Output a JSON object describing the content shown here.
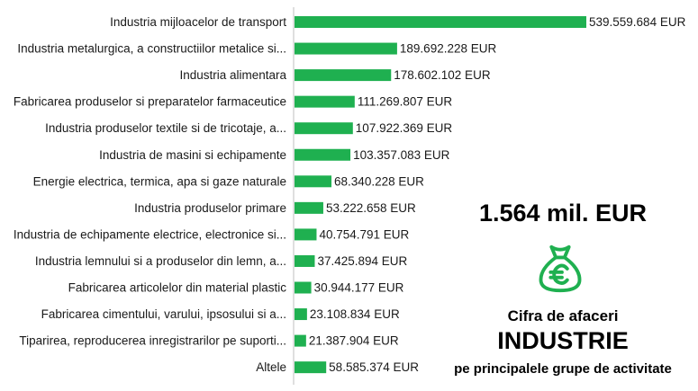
{
  "chart_data": {
    "type": "bar",
    "orientation": "horizontal",
    "title": "",
    "xlabel": "",
    "ylabel": "",
    "unit": "EUR",
    "grid": false,
    "categories": [
      "Industria mijloacelor de transport",
      "Industria metalurgica, a constructiilor metalice si...",
      "Industria alimentara",
      "Fabricarea produselor si preparatelor farmaceutice",
      "Industria produselor textile si de tricotaje, a...",
      "Industria de masini si echipamente",
      "Energie electrica, termica, apa si gaze naturale",
      "Industria produselor primare",
      "Industria de echipamente electrice, electronice si...",
      "Industria lemnului si a produselor din lemn, a...",
      "Fabricarea articolelor din material plastic",
      "Fabricarea cimentului, varului, ipsosului si a...",
      "Tiparirea, reproducerea inregistrarilor pe suporti...",
      "Altele"
    ],
    "values": [
      539559684,
      189692228,
      178602102,
      111269807,
      107922369,
      103357083,
      68340228,
      53222658,
      40754791,
      37425894,
      30944177,
      23108834,
      21387904,
      58585374
    ],
    "value_labels": [
      "539.559.684 EUR",
      "189.692.228 EUR",
      "178.602.102 EUR",
      "111.269.807 EUR",
      "107.922.369 EUR",
      "103.357.083 EUR",
      "68.340.228 EUR",
      "53.222.658 EUR",
      "40.754.791 EUR",
      "37.425.894 EUR",
      "30.944.177 EUR",
      "23.108.834 EUR",
      "21.387.904 EUR",
      "58.585.374 EUR"
    ],
    "xlim": [
      0,
      539559684
    ]
  },
  "summary": {
    "total": "1.564 mil. EUR",
    "icon": "money-bag-euro-icon",
    "caption_top": "Cifra de afaceri",
    "caption_main": "INDUSTRIE",
    "caption_bottom": "pe principalele grupe de activitate"
  },
  "colors": {
    "bar": "#1fb050",
    "icon": "#1fb050",
    "text": "#1a1a1a"
  }
}
